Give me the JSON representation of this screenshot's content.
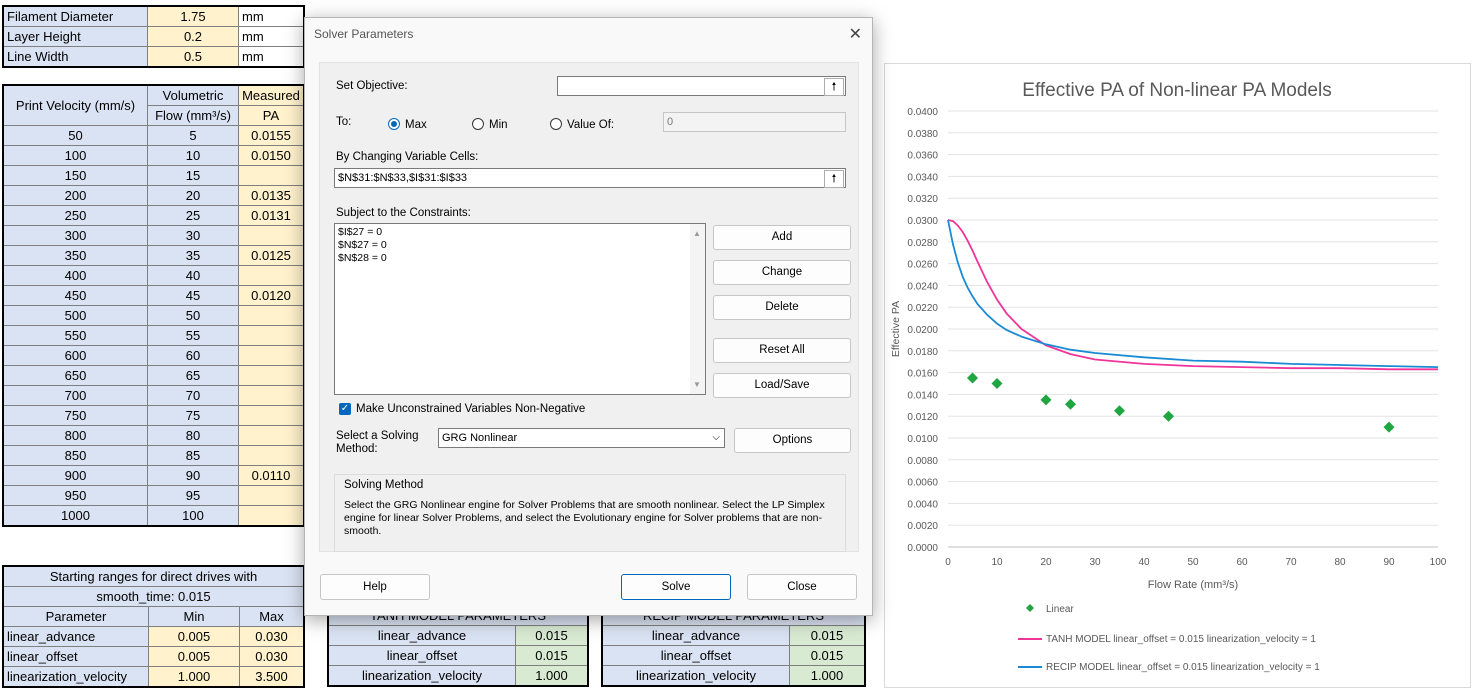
{
  "params": [
    {
      "label": "Filament Diameter",
      "value": "1.75",
      "unit": "mm"
    },
    {
      "label": "Layer Height",
      "value": "0.2",
      "unit": "mm"
    },
    {
      "label": "Line Width",
      "value": "0.5",
      "unit": "mm"
    }
  ],
  "data_table": {
    "headers": [
      "Print Velocity (mm/s)",
      "Volumetric",
      "Flow (mm³/s)",
      "Measured",
      "PA"
    ],
    "rows": [
      [
        "50",
        "5",
        "0.0155"
      ],
      [
        "100",
        "10",
        "0.0150"
      ],
      [
        "150",
        "15",
        ""
      ],
      [
        "200",
        "20",
        "0.0135"
      ],
      [
        "250",
        "25",
        "0.0131"
      ],
      [
        "300",
        "30",
        ""
      ],
      [
        "350",
        "35",
        "0.0125"
      ],
      [
        "400",
        "40",
        ""
      ],
      [
        "450",
        "45",
        "0.0120"
      ],
      [
        "500",
        "50",
        ""
      ],
      [
        "550",
        "55",
        ""
      ],
      [
        "600",
        "60",
        ""
      ],
      [
        "650",
        "65",
        ""
      ],
      [
        "700",
        "70",
        ""
      ],
      [
        "750",
        "75",
        ""
      ],
      [
        "800",
        "80",
        ""
      ],
      [
        "850",
        "85",
        ""
      ],
      [
        "900",
        "90",
        "0.0110"
      ],
      [
        "950",
        "95",
        ""
      ],
      [
        "1000",
        "100",
        ""
      ]
    ]
  },
  "ranges_table": {
    "title_line1": "Starting ranges for direct drives with",
    "title_line2": "smooth_time: 0.015",
    "headers": [
      "Parameter",
      "Min",
      "Max"
    ],
    "rows": [
      [
        "linear_advance",
        "0.005",
        "0.030"
      ],
      [
        "linear_offset",
        "0.005",
        "0.030"
      ],
      [
        "linearization_velocity",
        "1.000",
        "3.500"
      ]
    ]
  },
  "tanh_table": {
    "title": "TANH MODEL PARAMETERS",
    "rows": [
      [
        "linear_advance",
        "0.015"
      ],
      [
        "linear_offset",
        "0.015"
      ],
      [
        "linearization_velocity",
        "1.000"
      ]
    ]
  },
  "recip_table": {
    "title": "RECIP MODEL PARAMETERS",
    "rows": [
      [
        "linear_advance",
        "0.015"
      ],
      [
        "linear_offset",
        "0.015"
      ],
      [
        "linearization_velocity",
        "1.000"
      ]
    ]
  },
  "dialog": {
    "title": "Solver Parameters",
    "close": "✕",
    "set_objective_label": "Set Objective:",
    "set_objective_value": "",
    "to_label": "To:",
    "radio_max": "Max",
    "radio_min": "Min",
    "radio_value_of": "Value Of:",
    "value_of_value": "0",
    "changing_label": "By Changing Variable Cells:",
    "changing_value": "$N$31:$N$33,$I$31:$I$33",
    "constraints_label": "Subject to the Constraints:",
    "constraints": [
      "$I$27 = 0",
      "$N$27 = 0",
      "$N$28 = 0"
    ],
    "btn_add": "Add",
    "btn_change": "Change",
    "btn_delete": "Delete",
    "btn_reset": "Reset All",
    "btn_load": "Load/Save",
    "checkbox_label": "Make Unconstrained Variables Non-Negative",
    "method_label_1": "Select a Solving",
    "method_label_2": "Method:",
    "method_value": "GRG Nonlinear",
    "btn_options": "Options",
    "group_title": "Solving Method",
    "group_text": "Select the GRG Nonlinear engine for Solver Problems that are smooth nonlinear. Select the LP Simplex engine for linear Solver Problems, and select the Evolutionary engine for Solver problems that are non-smooth.",
    "btn_help": "Help",
    "btn_solve": "Solve",
    "btn_close": "Close"
  },
  "chart_data": {
    "type": "scatter",
    "title": "Effective PA of Non-linear PA Models",
    "xlabel": "Flow Rate (mm³/s)",
    "ylabel": "Effective PA",
    "xlim": [
      0,
      100
    ],
    "ylim": [
      0,
      0.04
    ],
    "x_ticks": [
      "0",
      "10",
      "20",
      "30",
      "40",
      "50",
      "60",
      "70",
      "80",
      "90",
      "100"
    ],
    "y_ticks": [
      "0.0000",
      "0.0020",
      "0.0040",
      "0.0060",
      "0.0080",
      "0.0100",
      "0.0120",
      "0.0140",
      "0.0160",
      "0.0180",
      "0.0200",
      "0.0220",
      "0.0240",
      "0.0260",
      "0.0280",
      "0.0300",
      "0.0320",
      "0.0340",
      "0.0360",
      "0.0380",
      "0.0400"
    ],
    "grid": "horizontal",
    "legend_position": "bottom",
    "series": [
      {
        "name": "Linear",
        "kind": "markers",
        "color": "#1fa640",
        "x": [
          5,
          10,
          20,
          25,
          35,
          45,
          90
        ],
        "y": [
          0.0155,
          0.015,
          0.0135,
          0.0131,
          0.0125,
          0.012,
          0.011
        ]
      },
      {
        "name": "TANH MODEL linear_offset = 0.015 linearization_velocity = 1",
        "kind": "line",
        "color": "#f0349a",
        "x": [
          0,
          1,
          2,
          3,
          4,
          5,
          6,
          8,
          10,
          12,
          15,
          20,
          25,
          30,
          40,
          50,
          60,
          70,
          80,
          90,
          100
        ],
        "y": [
          0.03,
          0.0299,
          0.0295,
          0.0289,
          0.0281,
          0.0272,
          0.0262,
          0.0243,
          0.0227,
          0.0214,
          0.02,
          0.0185,
          0.0177,
          0.0172,
          0.0168,
          0.0166,
          0.0165,
          0.0164,
          0.0164,
          0.0163,
          0.0163
        ]
      },
      {
        "name": "RECIP MODEL linear_offset = 0.015 linearization_velocity = 1",
        "kind": "line",
        "color": "#1a8ad4",
        "x": [
          0,
          1,
          2,
          3,
          4,
          5,
          6,
          8,
          10,
          12,
          15,
          20,
          25,
          30,
          40,
          50,
          60,
          70,
          80,
          90,
          100
        ],
        "y": [
          0.03,
          0.0278,
          0.0261,
          0.0248,
          0.0238,
          0.023,
          0.0223,
          0.0213,
          0.0205,
          0.0199,
          0.0193,
          0.0186,
          0.0181,
          0.0178,
          0.0174,
          0.0171,
          0.017,
          0.0168,
          0.0167,
          0.0166,
          0.0165
        ]
      }
    ]
  }
}
